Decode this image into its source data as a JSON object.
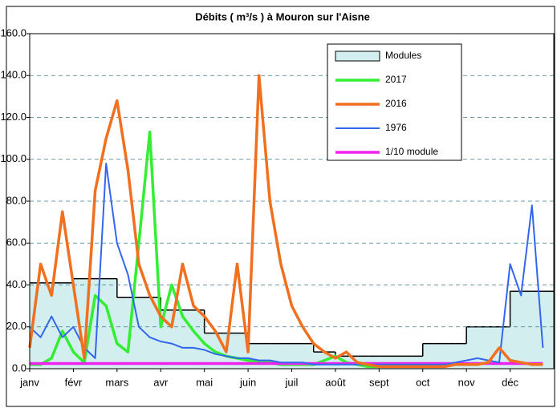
{
  "chart_data": {
    "type": "line",
    "title": "Débits ( m³/s ) à Mouron sur l'Aisne",
    "categories": [
      "janv",
      null,
      null,
      null,
      "févr",
      null,
      null,
      null,
      "mars",
      null,
      null,
      null,
      "avr",
      null,
      null,
      null,
      "mai",
      null,
      null,
      null,
      "juin",
      null,
      null,
      null,
      "juil",
      null,
      null,
      null,
      "août",
      null,
      null,
      null,
      "sept",
      null,
      null,
      null,
      "oct",
      null,
      null,
      null,
      "nov",
      null,
      null,
      null,
      "déc",
      null,
      null,
      null
    ],
    "ylim": [
      0,
      160
    ],
    "yticks": [
      {
        "value": 0,
        "label": "0.0"
      },
      {
        "value": 20,
        "label": "20.0"
      },
      {
        "value": 40,
        "label": "40.0"
      },
      {
        "value": 60,
        "label": "60.0"
      },
      {
        "value": 80,
        "label": "80.0"
      },
      {
        "value": 100,
        "label": "100.0"
      },
      {
        "value": 120,
        "label": "120.0"
      },
      {
        "value": 140,
        "label": "140.0"
      },
      {
        "value": 160,
        "label": "160.0"
      }
    ],
    "grid": true,
    "legend": "upper right",
    "series": [
      {
        "name": "Modules",
        "kind": "step-area",
        "color": "#d2eeee",
        "values": [
          41,
          41,
          41,
          41,
          43,
          43,
          43,
          43,
          34,
          34,
          34,
          34,
          28,
          28,
          28,
          28,
          17,
          17,
          17,
          17,
          12,
          12,
          12,
          12,
          12,
          12,
          8,
          8,
          6,
          6,
          6,
          6,
          6,
          6,
          6,
          6,
          12,
          12,
          12,
          12,
          20,
          20,
          20,
          20,
          37,
          37,
          37,
          37
        ]
      },
      {
        "name": "2017",
        "color": "#33ee33",
        "values": [
          2,
          2,
          5,
          18,
          8,
          3,
          35,
          30,
          12,
          8,
          60,
          113,
          20,
          40,
          25,
          18,
          12,
          8,
          6,
          5,
          4,
          3,
          3,
          2,
          2,
          2,
          2,
          4,
          6,
          3,
          2,
          1,
          1,
          null,
          null,
          null,
          null,
          null,
          null,
          null,
          null,
          null,
          null,
          null,
          null,
          null,
          null,
          null
        ]
      },
      {
        "name": "2016",
        "color": "#f07020",
        "values": [
          10,
          50,
          35,
          75,
          40,
          5,
          85,
          110,
          128,
          95,
          50,
          35,
          25,
          20,
          50,
          30,
          25,
          18,
          8,
          50,
          8,
          140,
          80,
          50,
          30,
          20,
          12,
          8,
          5,
          8,
          3,
          2,
          1,
          1,
          1,
          1,
          1,
          1,
          1,
          2,
          2,
          2,
          3,
          10,
          4,
          3,
          2,
          2
        ]
      },
      {
        "name": "1976",
        "color": "#3366ee",
        "values": [
          20,
          15,
          25,
          15,
          20,
          10,
          5,
          98,
          60,
          45,
          20,
          15,
          13,
          12,
          10,
          10,
          9,
          7,
          6,
          5,
          5,
          4,
          4,
          3,
          3,
          3,
          2,
          2,
          2,
          2,
          2,
          2,
          2,
          2,
          2,
          2,
          2,
          2,
          2,
          3,
          4,
          5,
          4,
          3,
          50,
          35,
          78,
          10
        ]
      },
      {
        "name": "1/10 module",
        "color": "#ee22ee",
        "values": [
          2.5,
          2.5,
          2.5,
          2.5,
          2.5,
          2.5,
          2.5,
          2.5,
          2.5,
          2.5,
          2.5,
          2.5,
          2.5,
          2.5,
          2.5,
          2.5,
          2.5,
          2.5,
          2.5,
          2.5,
          2.5,
          2.5,
          2.5,
          2.5,
          2.5,
          2.5,
          2.5,
          2.5,
          2.5,
          2.5,
          2.5,
          2.5,
          2.5,
          2.5,
          2.5,
          2.5,
          2.5,
          2.5,
          2.5,
          2.5,
          2.5,
          2.5,
          2.5,
          2.5,
          2.5,
          2.5,
          2.5,
          2.5
        ]
      }
    ]
  }
}
